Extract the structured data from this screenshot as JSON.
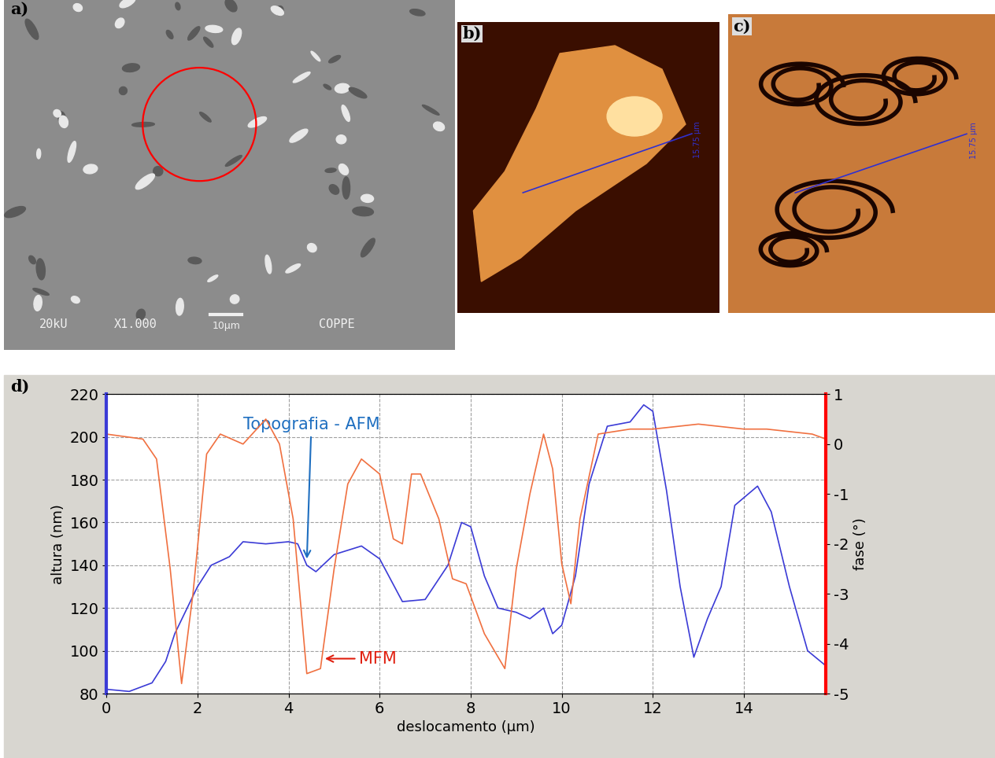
{
  "panels": {
    "a": {
      "label": "a)",
      "texts": [
        "20kU",
        "X1.000",
        "10μm",
        "COPPE"
      ]
    },
    "b": {
      "label": "b)",
      "scale_text": "15.75 µm"
    },
    "c": {
      "label": "c)",
      "scale_text": "15.75 µm"
    },
    "d": {
      "label": "d)"
    }
  },
  "chart_data": {
    "type": "line",
    "xlabel": "deslocamento (µm)",
    "ylabel": "altura (nm)",
    "y2label": "fase (°)",
    "xlim": [
      0,
      15.8
    ],
    "xticks": [
      0,
      2,
      4,
      6,
      8,
      10,
      12,
      14
    ],
    "ylim": [
      80,
      220
    ],
    "yticks": [
      80,
      100,
      120,
      140,
      160,
      180,
      200,
      220
    ],
    "y2lim": [
      -5,
      1
    ],
    "y2ticks": [
      -5,
      -4,
      -3,
      -2,
      -1,
      0,
      1
    ],
    "grid": true,
    "series": [
      {
        "color": "#3b3bd6",
        "axis": "y",
        "x": [
          0,
          0.5,
          1,
          1.3,
          1.5,
          2,
          2.3,
          2.7,
          3,
          3.5,
          4,
          4.2,
          4.4,
          4.6,
          5,
          5.3,
          5.6,
          6,
          6.5,
          7,
          7.5,
          7.8,
          8,
          8.3,
          8.6,
          9,
          9.3,
          9.6,
          9.8,
          10,
          10.3,
          10.6,
          11,
          11.5,
          11.8,
          12,
          12.3,
          12.6,
          12.9,
          13.2,
          13.5,
          13.8,
          14.3,
          14.6,
          15,
          15.4,
          15.8
        ],
        "values": [
          82,
          81,
          85,
          95,
          108,
          130,
          140,
          144,
          151,
          150,
          151,
          150,
          140,
          137,
          145,
          147,
          149,
          143,
          123,
          124,
          140,
          160,
          158,
          135,
          120,
          118,
          115,
          120,
          108,
          112,
          135,
          178,
          205,
          207,
          215,
          212,
          175,
          130,
          97,
          115,
          130,
          168,
          177,
          165,
          130,
          100,
          93
        ]
      },
      {
        "color": "#f07040",
        "axis": "y2",
        "x": [
          0,
          0.8,
          1.1,
          1.4,
          1.65,
          1.9,
          2.2,
          2.5,
          3,
          3.5,
          3.8,
          4.1,
          4.4,
          4.7,
          5,
          5.3,
          5.6,
          6,
          6.3,
          6.5,
          6.7,
          6.9,
          7.3,
          7.6,
          7.9,
          8.3,
          8.75,
          9,
          9.3,
          9.6,
          9.8,
          10,
          10.2,
          10.4,
          10.8,
          11.5,
          12,
          13,
          14,
          14.5,
          15.5,
          15.8
        ],
        "values": [
          0.2,
          0.1,
          -0.3,
          -2.5,
          -4.8,
          -3,
          -0.2,
          0.2,
          0,
          0.5,
          0,
          -1.5,
          -4.6,
          -4.5,
          -2.5,
          -0.8,
          -0.3,
          -0.6,
          -1.9,
          -2,
          -0.6,
          -0.6,
          -1.5,
          -2.7,
          -2.8,
          -3.8,
          -4.5,
          -2.5,
          -1,
          0.2,
          -0.5,
          -2.4,
          -3.2,
          -1.5,
          0.2,
          0.3,
          0.3,
          0.4,
          0.3,
          0.3,
          0.2,
          0.1
        ]
      }
    ],
    "annotations": [
      {
        "text": "Topografia - AFM",
        "color": "#1f6fc0",
        "x": 4.4,
        "y": 142,
        "axis": "y"
      },
      {
        "text": "MFM",
        "color": "#e02010",
        "x": 4.75,
        "y": -4.3,
        "axis": "y2"
      }
    ]
  }
}
